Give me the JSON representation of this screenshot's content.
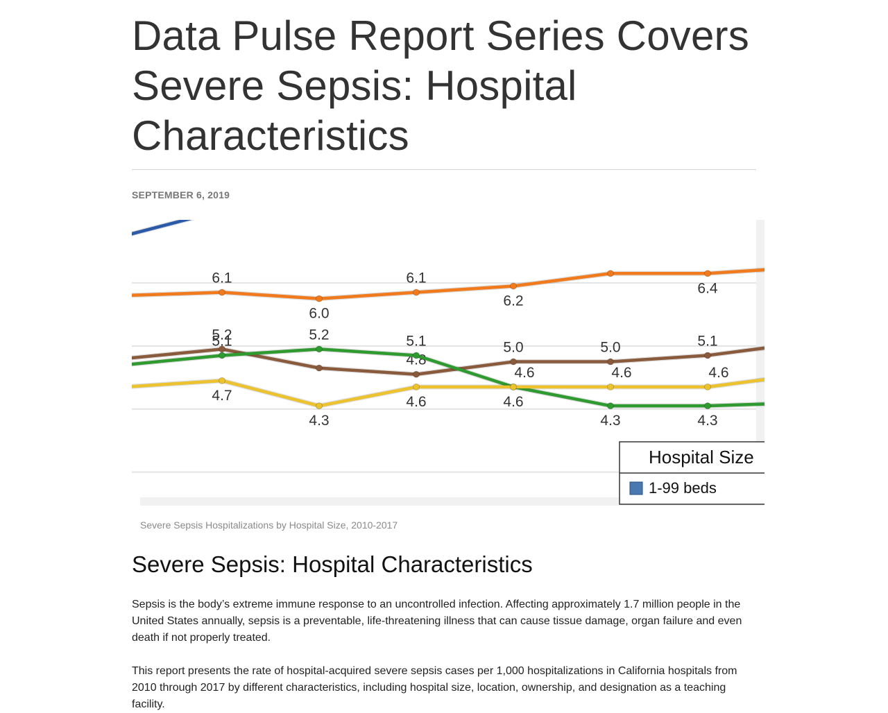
{
  "article": {
    "title": "Data Pulse Report Series Covers Severe Sepsis: Hospital Characteristics",
    "date": "SEPTEMBER 6, 2019",
    "figure_caption": "Severe Sepsis Hospitalizations by Hospital Size, 2010-2017",
    "section_heading": "Severe Sepsis: Hospital Characteristics",
    "paragraphs": [
      "Sepsis is the body’s extreme immune response to an uncontrolled infection. Affecting approximately 1.7 million people in the United States annually, sepsis is a preventable, life-threatening illness that can cause tissue damage, organ failure and even death if not properly treated.",
      "This report presents the rate of hospital-acquired severe sepsis cases per 1,000 hospitalizations in California hospitals from 2010 through 2017 by different characteristics, including hospital size, location, ownership, and designation as a teaching facility."
    ]
  },
  "chart_data": {
    "type": "line",
    "note_colors": {
      "background": "#ffffff",
      "grid": "#e3e3e3",
      "border": "#d8d8d8"
    },
    "legend": {
      "title": "Hospital Size",
      "entries": [
        {
          "label": "1-99 beds",
          "color": "#4a78b0"
        }
      ],
      "placement": "bottom-right"
    },
    "ylim": [
      2.85,
      7.25
    ],
    "series": [
      {
        "color": "#f07a1c",
        "label_pos": "alt",
        "values": [
          6.05,
          6.1,
          6.0,
          6.1,
          6.2,
          6.4,
          6.4,
          6.5
        ],
        "labels": [
          "",
          "6.1",
          "6.0",
          "6.1",
          "6.2",
          "",
          "6.4",
          ""
        ]
      },
      {
        "color": "#8a5a3c",
        "label_pos": "above",
        "values": [
          5.05,
          5.2,
          4.9,
          4.8,
          5.0,
          5.0,
          5.1,
          5.3
        ],
        "labels": [
          "",
          "5.2",
          "",
          "4.8",
          "5.0",
          "5.0",
          "5.1",
          ""
        ]
      },
      {
        "color": "#2f9a2f",
        "label_pos": "mixed",
        "values": [
          4.95,
          5.1,
          5.2,
          5.1,
          4.6,
          4.3,
          4.3,
          4.35
        ],
        "labels": [
          "",
          "5.1",
          "5.2",
          "5.1",
          "4.6",
          "4.3",
          "4.3",
          ""
        ]
      },
      {
        "color": "#ecc22e",
        "label_pos": "mixed",
        "values": [
          4.6,
          4.7,
          4.3,
          4.6,
          4.6,
          4.6,
          4.6,
          4.8
        ],
        "labels": [
          "",
          "4.7",
          "4.3",
          "4.6",
          "4.6",
          "4.6",
          "4.6",
          ""
        ]
      },
      {
        "color": "#2b5aa8",
        "label_pos": "none",
        "values": [
          7.0,
          7.4
        ],
        "labels": [
          "",
          ""
        ]
      }
    ]
  }
}
